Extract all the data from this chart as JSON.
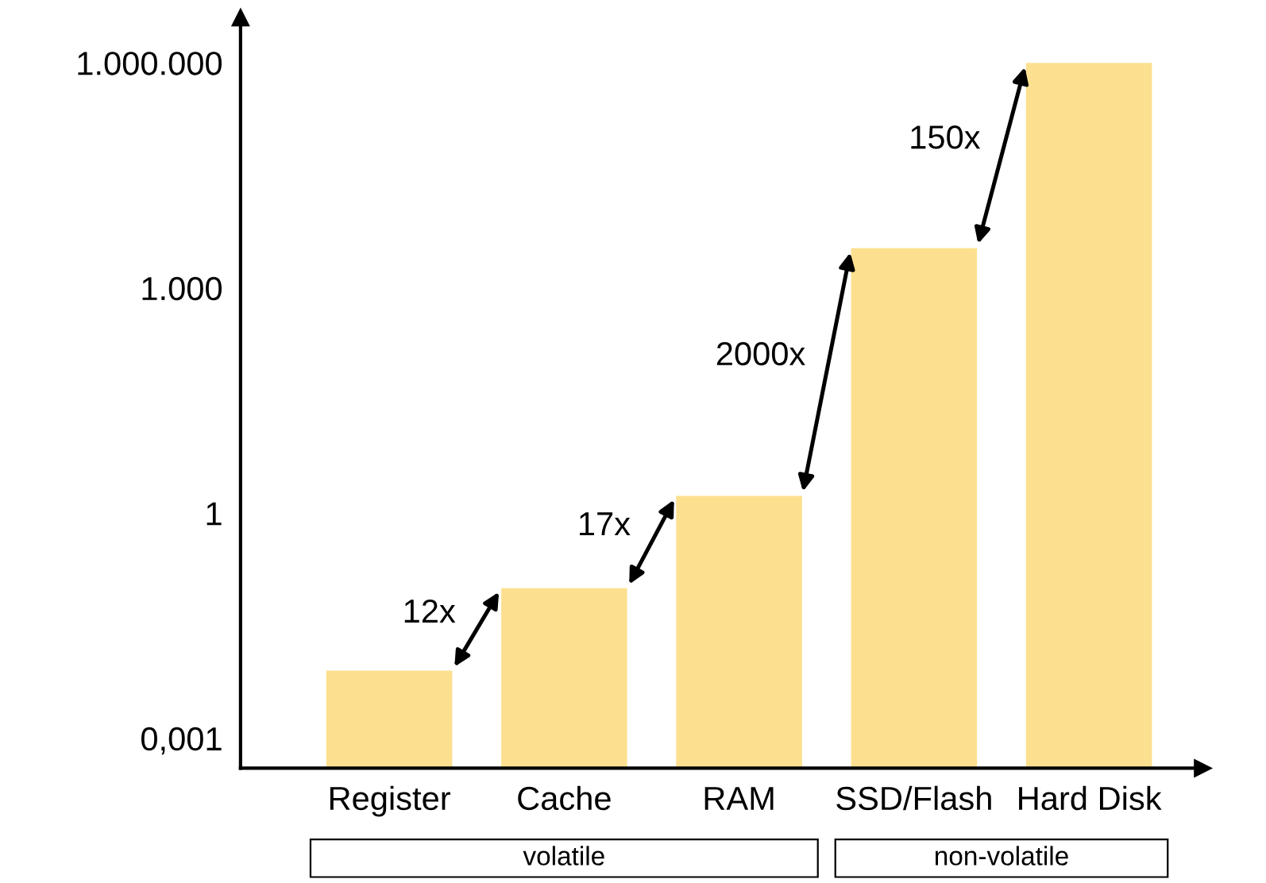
{
  "chart_data": {
    "type": "bar",
    "log": true,
    "categories": [
      "Register",
      "Cache",
      "RAM",
      "SSD/Flash",
      "Hard Disk"
    ],
    "values": [
      0.008,
      0.1,
      1.7,
      3400,
      1000000
    ],
    "color": "#fde08f",
    "ylim": [
      0.0004,
      4000000
    ],
    "yticks": [
      {
        "value": 0.001,
        "label": "0,001"
      },
      1,
      {
        "value": 1000,
        "label": "1.000"
      },
      {
        "value": 1000000,
        "label": "1.000.000"
      }
    ],
    "grid": false,
    "legend": false,
    "annotations": [
      "12x",
      "17x",
      "2000x",
      "150x",
      "volatile",
      "non-volatile"
    ]
  }
}
